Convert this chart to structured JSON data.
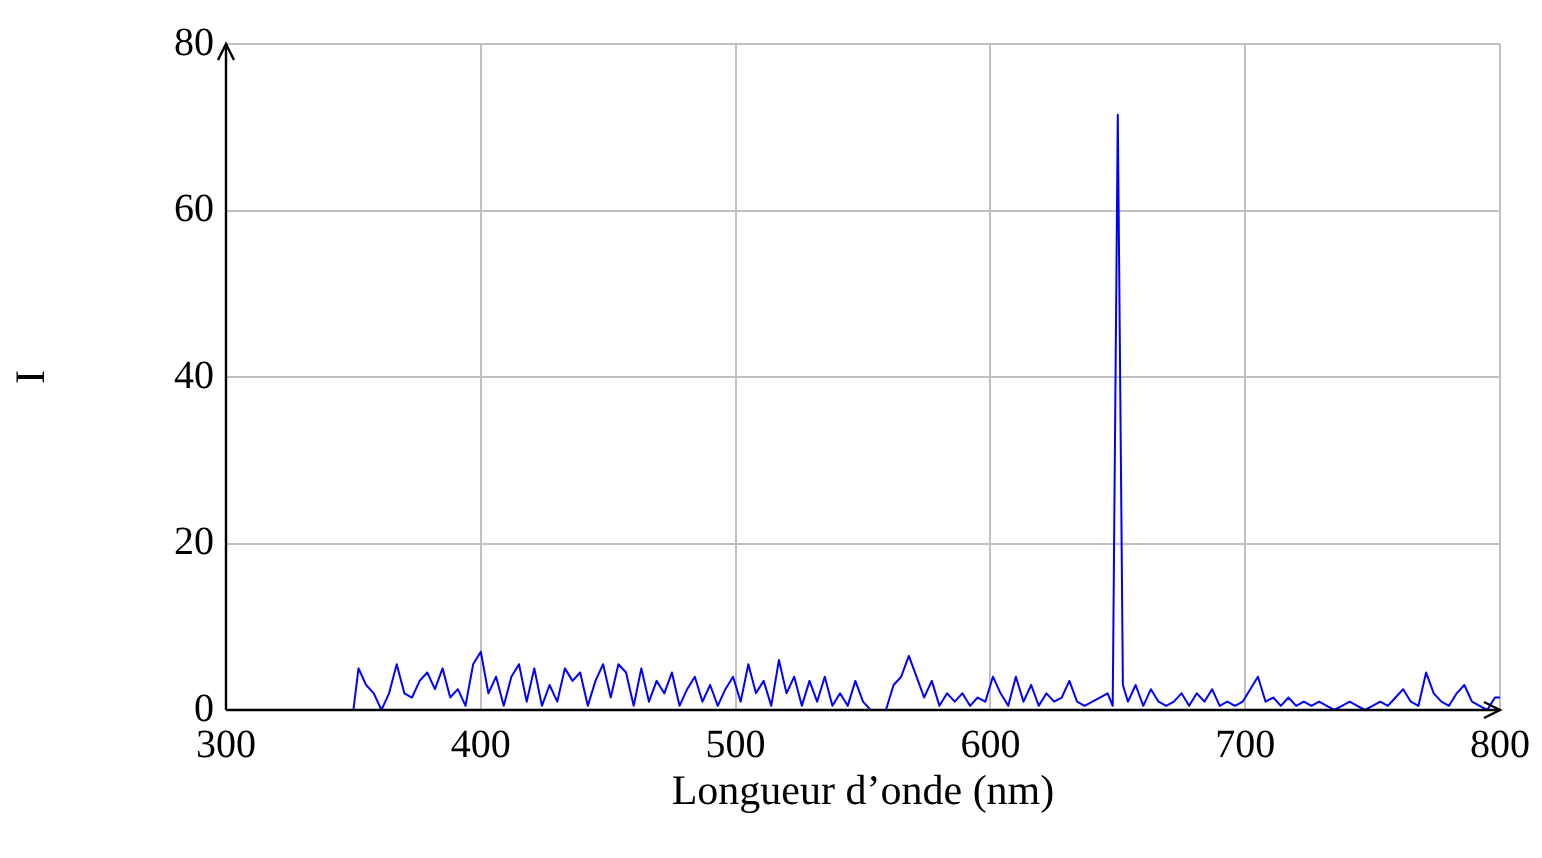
{
  "chart_data": {
    "type": "line",
    "xlabel": "Longueur d’onde (nm)",
    "ylabel": "I",
    "xlim": [
      300,
      800
    ],
    "xticks": [
      300,
      400,
      500,
      600,
      700,
      800
    ],
    "ylim": [
      0,
      80
    ],
    "yticks": [
      0,
      20,
      40,
      60,
      80
    ],
    "grid": true,
    "legend": false,
    "marker": "none",
    "line_style": "solid",
    "series": [
      {
        "color": "#0000ff",
        "x": [
          300,
          350,
          352,
          355,
          358,
          361,
          364,
          367,
          370,
          373,
          376,
          379,
          382,
          385,
          388,
          391,
          394,
          397,
          400,
          403,
          406,
          409,
          412,
          415,
          418,
          421,
          424,
          427,
          430,
          433,
          436,
          439,
          442,
          445,
          448,
          451,
          454,
          457,
          460,
          463,
          466,
          469,
          472,
          475,
          478,
          481,
          484,
          487,
          490,
          493,
          496,
          499,
          502,
          505,
          508,
          511,
          514,
          517,
          520,
          523,
          526,
          529,
          532,
          535,
          538,
          541,
          544,
          547,
          550,
          553,
          556,
          559,
          562,
          565,
          568,
          571,
          574,
          577,
          580,
          583,
          586,
          589,
          592,
          595,
          598,
          601,
          604,
          607,
          610,
          613,
          616,
          619,
          622,
          625,
          628,
          631,
          634,
          637,
          640,
          643,
          646,
          648,
          650,
          652,
          654,
          657,
          660,
          663,
          666,
          669,
          672,
          675,
          678,
          681,
          684,
          687,
          690,
          693,
          696,
          699,
          702,
          705,
          708,
          711,
          714,
          717,
          720,
          723,
          726,
          729,
          732,
          735,
          738,
          741,
          744,
          747,
          750,
          753,
          756,
          759,
          762,
          765,
          768,
          771,
          774,
          777,
          780,
          783,
          786,
          789,
          792,
          795,
          798,
          800
        ],
        "values": [
          0,
          0,
          5,
          3,
          2,
          0,
          2,
          5.5,
          2,
          1.5,
          3.5,
          4.5,
          2.5,
          5,
          1.5,
          2.5,
          0.5,
          5.5,
          7,
          2,
          4,
          0.5,
          4,
          5.5,
          1,
          5,
          0.5,
          3,
          1,
          5,
          3.5,
          4.5,
          0.5,
          3.5,
          5.5,
          1.5,
          5.5,
          4.5,
          0.5,
          5,
          1,
          3.5,
          2,
          4.5,
          0.5,
          2.5,
          4,
          1,
          3,
          0.5,
          2.5,
          4,
          1,
          5.5,
          2,
          3.5,
          0.5,
          6,
          2,
          4,
          0.5,
          3.5,
          1,
          4,
          0.5,
          2,
          0.5,
          3.5,
          1,
          0,
          0,
          0,
          3,
          4,
          6.5,
          4,
          1.5,
          3.5,
          0.5,
          2,
          1,
          2,
          0.5,
          1.5,
          1,
          4,
          2,
          0.5,
          4,
          1,
          3,
          0.5,
          2,
          1,
          1.5,
          3.5,
          1,
          0.5,
          1,
          1.5,
          2,
          0.5,
          71.5,
          3,
          1,
          3,
          0.5,
          2.5,
          1,
          0.5,
          1,
          2,
          0.5,
          2,
          1,
          2.5,
          0.5,
          1,
          0.5,
          1,
          2.5,
          4,
          1,
          1.5,
          0.5,
          1.5,
          0.5,
          1,
          0.5,
          1,
          0.5,
          0,
          0.5,
          1,
          0.5,
          0,
          0.5,
          1,
          0.5,
          1.5,
          2.5,
          1,
          0.5,
          4.5,
          2,
          1,
          0.5,
          2,
          3,
          1,
          0.5,
          0,
          1.5,
          1.5
        ]
      }
    ]
  }
}
